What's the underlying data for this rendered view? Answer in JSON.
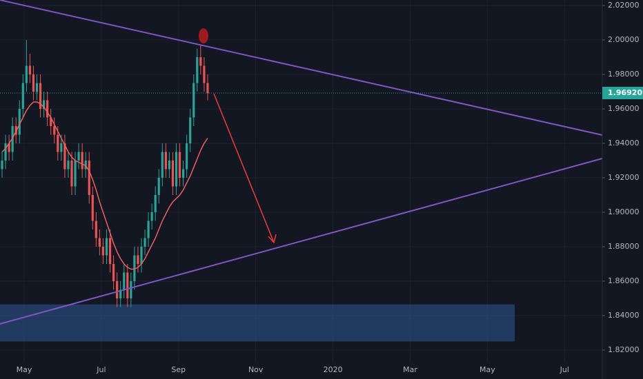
{
  "chart_data": {
    "type": "candlestick",
    "open": [
      1.925,
      1.93,
      1.94,
      1.935,
      1.95,
      1.945,
      1.96,
      1.975,
      1.985,
      1.98,
      1.97,
      1.975,
      1.96,
      1.965,
      1.955,
      1.95,
      1.945,
      1.935,
      1.94,
      1.925,
      1.93,
      1.915,
      1.93,
      1.935,
      1.925,
      1.93,
      1.91,
      1.895,
      1.885,
      1.88,
      1.875,
      1.885,
      1.87,
      1.86,
      1.85,
      1.855,
      1.865,
      1.85,
      1.86,
      1.875,
      1.87,
      1.88,
      1.885,
      1.895,
      1.9,
      1.91,
      1.92,
      1.935,
      1.925,
      1.93,
      1.915,
      1.935,
      1.92,
      1.925,
      1.94,
      1.955,
      1.975,
      1.99,
      1.985,
      1.975
    ],
    "high": [
      1.935,
      1.945,
      1.945,
      1.955,
      1.955,
      1.965,
      1.98,
      2.0,
      1.992,
      1.985,
      1.98,
      1.98,
      1.97,
      1.97,
      1.96,
      1.955,
      1.95,
      1.945,
      1.945,
      1.935,
      1.935,
      1.935,
      1.94,
      1.94,
      1.935,
      1.935,
      1.915,
      1.9,
      1.89,
      1.885,
      1.89,
      1.89,
      1.875,
      1.865,
      1.86,
      1.87,
      1.87,
      1.865,
      1.88,
      1.88,
      1.885,
      1.89,
      1.9,
      1.905,
      1.915,
      1.925,
      1.94,
      1.94,
      1.935,
      1.935,
      1.94,
      1.94,
      1.93,
      1.945,
      1.96,
      1.98,
      1.995,
      1.997,
      1.99,
      1.98
    ],
    "low": [
      1.92,
      1.925,
      1.93,
      1.93,
      1.94,
      1.94,
      1.955,
      1.97,
      1.975,
      1.965,
      1.965,
      1.955,
      1.955,
      1.95,
      1.945,
      1.94,
      1.93,
      1.93,
      1.92,
      1.92,
      1.91,
      1.91,
      1.925,
      1.92,
      1.92,
      1.905,
      1.89,
      1.88,
      1.875,
      1.87,
      1.87,
      1.865,
      1.855,
      1.845,
      1.845,
      1.85,
      1.845,
      1.845,
      1.855,
      1.865,
      1.865,
      1.875,
      1.88,
      1.89,
      1.895,
      1.905,
      1.915,
      1.92,
      1.92,
      1.91,
      1.91,
      1.915,
      1.915,
      1.92,
      1.935,
      1.95,
      1.97,
      1.98,
      1.97,
      1.965
    ],
    "close": [
      1.93,
      1.94,
      1.935,
      1.95,
      1.945,
      1.96,
      1.975,
      1.985,
      1.98,
      1.97,
      1.975,
      1.96,
      1.965,
      1.955,
      1.95,
      1.945,
      1.935,
      1.94,
      1.925,
      1.93,
      1.915,
      1.93,
      1.935,
      1.925,
      1.93,
      1.91,
      1.895,
      1.885,
      1.88,
      1.875,
      1.885,
      1.87,
      1.86,
      1.85,
      1.855,
      1.865,
      1.85,
      1.86,
      1.875,
      1.87,
      1.88,
      1.885,
      1.895,
      1.9,
      1.91,
      1.92,
      1.935,
      1.925,
      1.93,
      1.915,
      1.935,
      1.92,
      1.925,
      1.94,
      1.955,
      1.975,
      1.99,
      1.985,
      1.975,
      1.969
    ],
    "up_color": "#26a69a",
    "down_color": "#ef5350",
    "moving_average": {
      "color": "#f0605d",
      "values": [
        1.935,
        1.937,
        1.94,
        1.943,
        1.947,
        1.951,
        1.955,
        1.959,
        1.962,
        1.964,
        1.964,
        1.963,
        1.961,
        1.958,
        1.955,
        1.951,
        1.947,
        1.943,
        1.939,
        1.935,
        1.932,
        1.93,
        1.929,
        1.928,
        1.927,
        1.924,
        1.919,
        1.913,
        1.906,
        1.9,
        1.894,
        1.888,
        1.882,
        1.877,
        1.873,
        1.87,
        1.868,
        1.867,
        1.867,
        1.868,
        1.87,
        1.873,
        1.877,
        1.881,
        1.885,
        1.89,
        1.895,
        1.899,
        1.903,
        1.906,
        1.908,
        1.91,
        1.913,
        1.917,
        1.921,
        1.926,
        1.931,
        1.936,
        1.94,
        1.943
      ]
    },
    "x_labels": [
      "May",
      "Jul",
      "Sep",
      "Nov",
      "2020",
      "Mar",
      "May",
      "Jul"
    ],
    "ylim": [
      1.8032,
      2.0232
    ],
    "yticks": [
      {
        "value": 1.82,
        "label": "1.82000"
      },
      {
        "value": 1.84,
        "label": "1.84000"
      },
      {
        "value": 1.86,
        "label": "1.86000"
      },
      {
        "value": 1.88,
        "label": "1.88000"
      },
      {
        "value": 1.9,
        "label": "1.90000"
      },
      {
        "value": 1.92,
        "label": "1.92000"
      },
      {
        "value": 1.94,
        "label": "1.94000"
      },
      {
        "value": 1.96,
        "label": "1.96000"
      },
      {
        "value": 1.98,
        "label": "1.98000"
      },
      {
        "value": 2.0,
        "label": "2.00000"
      },
      {
        "value": 2.02,
        "label": "2.02000"
      }
    ],
    "grid": true,
    "last_price": {
      "value": 1.9692,
      "label": "1.96920",
      "color": "#26a69a"
    },
    "trendlines": [
      {
        "color": "#7e57c2",
        "start": 2.0232,
        "end": 1.9448
      },
      {
        "color": "#7e57c2",
        "start": 1.8352,
        "end": 1.9312
      }
    ],
    "zone": {
      "low": 1.825,
      "high": 1.8465,
      "color": "#2a4a7a"
    }
  }
}
